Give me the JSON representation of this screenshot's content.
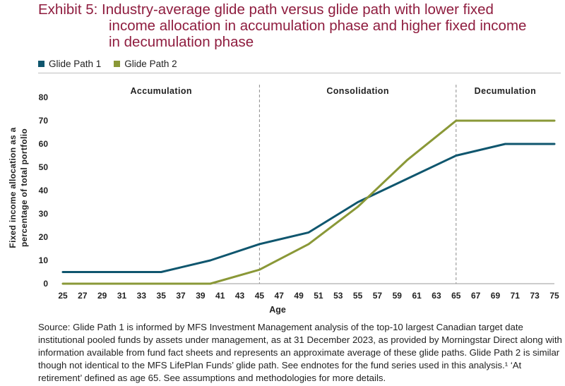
{
  "title": {
    "line1": "Exhibit 5: Industry-average glide path versus glide path with lower fixed",
    "line2": "income allocation in accumulation phase and higher fixed income",
    "line3": "in decumulation phase"
  },
  "colors": {
    "title": "#8f1d3f",
    "series1": "#0f566e",
    "series2": "#8a9837",
    "divider": "#8c8c8c"
  },
  "chart_data": {
    "type": "line",
    "xlabel": "Age",
    "ylabel_line1": "Fixed income allocation as a",
    "ylabel_line2": "percentage of total portfolio",
    "xlim": [
      25,
      75
    ],
    "ylim": [
      0,
      80
    ],
    "x_ticks": [
      "25",
      "27",
      "29",
      "31",
      "33",
      "35",
      "37",
      "39",
      "41",
      "43",
      "45",
      "47",
      "49",
      "51",
      "53",
      "55",
      "57",
      "59",
      "61",
      "63",
      "65",
      "67",
      "69",
      "71",
      "73",
      "75"
    ],
    "y_ticks": [
      "0",
      "10",
      "20",
      "30",
      "40",
      "50",
      "60",
      "70",
      "80"
    ],
    "phases": [
      {
        "label": "Accumulation",
        "from": 25,
        "to": 45
      },
      {
        "label": "Consolidation",
        "from": 45,
        "to": 65
      },
      {
        "label": "Decumulation",
        "from": 65,
        "to": 75
      }
    ],
    "dividers": [
      45,
      65
    ],
    "legend_position": "top-left",
    "series": [
      {
        "name": "Glide Path 1",
        "color": "#0f566e",
        "points": [
          [
            25,
            5
          ],
          [
            35,
            5
          ],
          [
            40,
            10
          ],
          [
            45,
            17
          ],
          [
            50,
            22
          ],
          [
            55,
            35
          ],
          [
            60,
            45
          ],
          [
            65,
            55
          ],
          [
            70,
            60
          ],
          [
            75,
            60
          ]
        ]
      },
      {
        "name": "Glide Path 2",
        "color": "#8a9837",
        "points": [
          [
            25,
            0
          ],
          [
            40,
            0
          ],
          [
            45,
            6
          ],
          [
            50,
            17
          ],
          [
            55,
            33
          ],
          [
            60,
            53
          ],
          [
            65,
            70
          ],
          [
            70,
            70
          ],
          [
            75,
            70
          ]
        ]
      }
    ]
  },
  "source": "Source: Glide Path 1 is informed by MFS Investment Management analysis of the top-10 largest Canadian target date institutional pooled funds by assets under management, as at 31 December 2023, as provided by Morningstar Direct along with information available from fund fact sheets and represents an approximate average of these glide paths. Glide Path 2 is similar though not identical to the MFS LifePlan Funds’ glide path.  See endnotes for the fund series used in this analysis.¹ ‘At retirement’ defined as age 65. See assumptions and methodologies for more details."
}
